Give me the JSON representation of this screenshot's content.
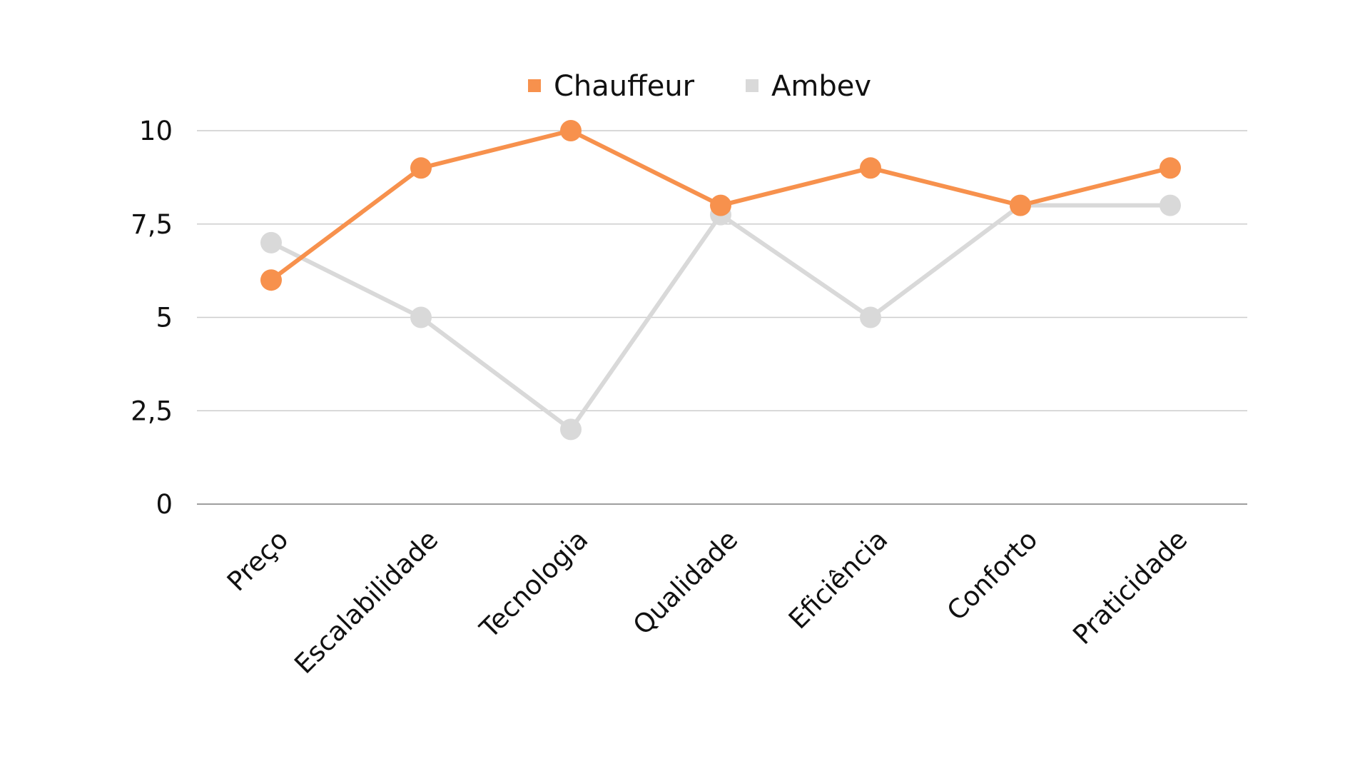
{
  "chart_data": {
    "type": "line",
    "title": "",
    "xlabel": "",
    "ylabel": "",
    "categories": [
      "Preço",
      "Escalabilidade",
      "Tecnologia",
      "Qualidade",
      "Eficiência",
      "Conforto",
      "Praticidade"
    ],
    "series": [
      {
        "name": "Chauffeur",
        "color": "#F7914D",
        "values": [
          6,
          9,
          10,
          8,
          9,
          8,
          9
        ]
      },
      {
        "name": "Ambev",
        "color": "#D9D9D9",
        "values": [
          7,
          5,
          2,
          7.75,
          5,
          8,
          8
        ]
      }
    ],
    "ylim": [
      0,
      10
    ],
    "yticks": [
      {
        "value": 0,
        "label": "0"
      },
      {
        "value": 2.5,
        "label": "2,5"
      },
      {
        "value": 5,
        "label": "5"
      },
      {
        "value": 7.5,
        "label": "7,5"
      },
      {
        "value": 10,
        "label": "10"
      }
    ],
    "grid": true,
    "grid_color": "#CCCCCC",
    "legend": "top-center"
  }
}
